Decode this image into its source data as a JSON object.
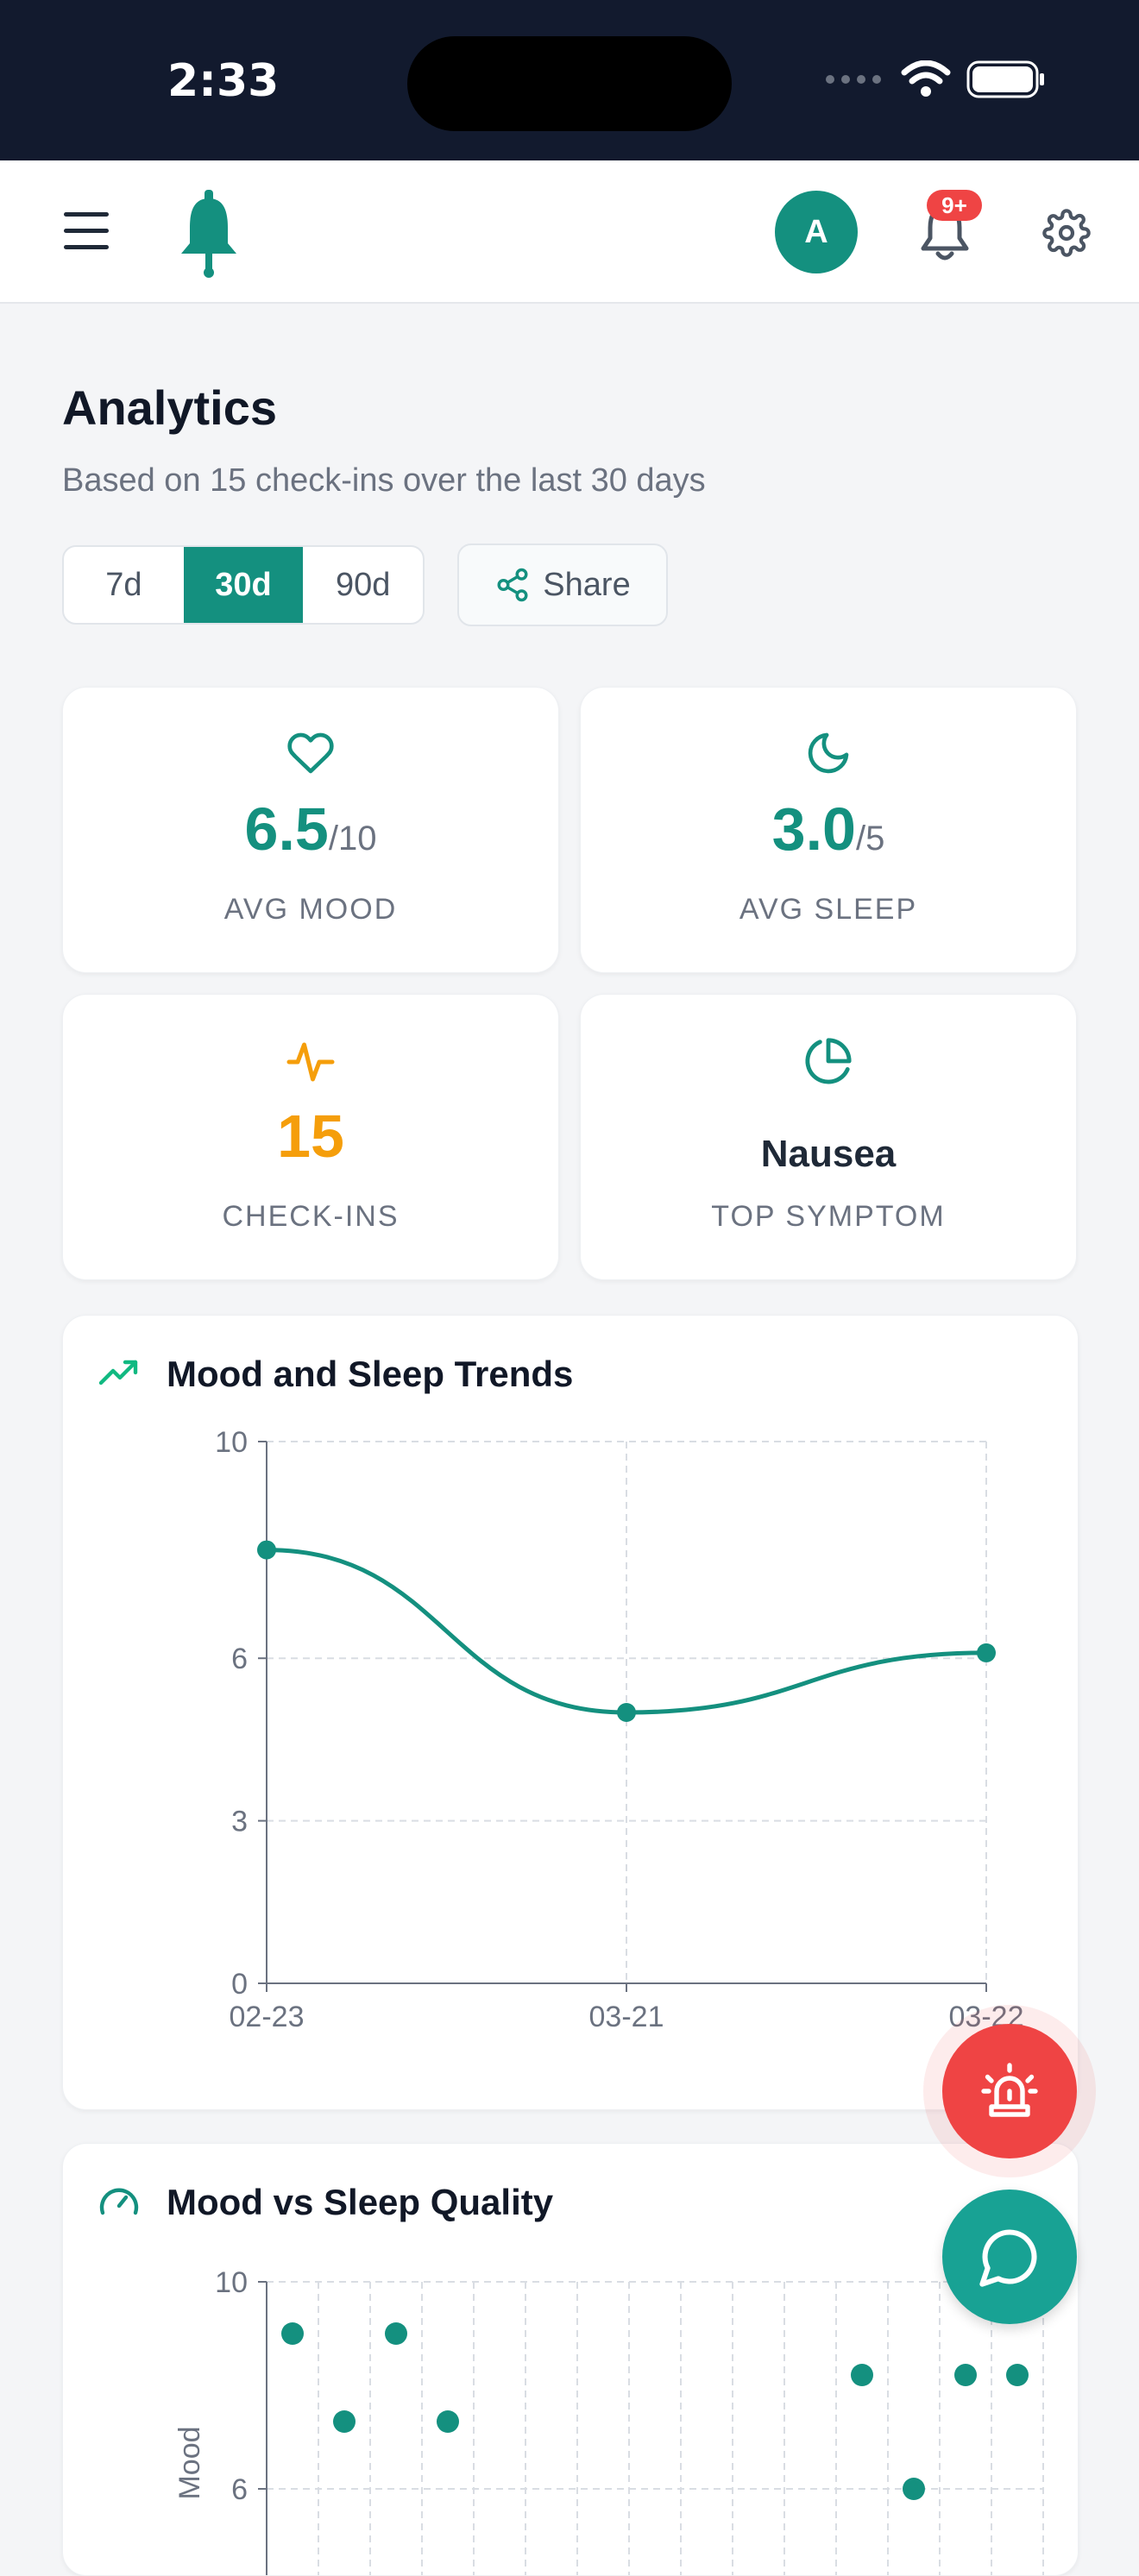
{
  "status_bar": {
    "time": "2:33"
  },
  "header": {
    "avatar_initial": "A",
    "notification_badge": "9+"
  },
  "page": {
    "title": "Analytics",
    "subtitle": "Based on 15 check-ins over the last 30 days"
  },
  "range": {
    "options": [
      "7d",
      "30d",
      "90d"
    ],
    "selected": "30d"
  },
  "share_label": "Share",
  "stats": {
    "mood": {
      "value": "6.5",
      "unit": "/10",
      "label": "AVG MOOD",
      "icon": "heart-icon"
    },
    "sleep": {
      "value": "3.0",
      "unit": "/5",
      "label": "AVG SLEEP",
      "icon": "moon-icon"
    },
    "checkins": {
      "value": "15",
      "label": "CHECK-INS",
      "icon": "activity-icon"
    },
    "symptom": {
      "value": "Nausea",
      "label": "TOP SYMPTOM",
      "icon": "pie-chart-icon"
    }
  },
  "colors": {
    "accent": "#14907f",
    "checkins": "#f59e0b",
    "alert": "#ef4444",
    "chat": "#18a294"
  },
  "chart_data": [
    {
      "type": "line",
      "title": "Mood and Sleep Trends",
      "categories": [
        "02-23",
        "03-21",
        "03-22"
      ],
      "series": [
        {
          "values": [
            8,
            5,
            6.1
          ]
        }
      ],
      "yticks": [
        0,
        3,
        6,
        10
      ],
      "ylim": [
        0,
        10
      ],
      "grid": true
    },
    {
      "type": "scatter",
      "title": "Mood vs Sleep Quality",
      "ylabel": "Mood",
      "yticks": [
        6,
        10
      ],
      "ylim": [
        6,
        10
      ],
      "points": [
        {
          "x": 1,
          "y": 9
        },
        {
          "x": 2,
          "y": 7.3
        },
        {
          "x": 3,
          "y": 9
        },
        {
          "x": 4,
          "y": 7.3
        },
        {
          "x": 12,
          "y": 8.2
        },
        {
          "x": 13,
          "y": 6
        },
        {
          "x": 14,
          "y": 8.2
        },
        {
          "x": 15,
          "y": 8.2
        }
      ],
      "xlim": [
        0.5,
        15.5
      ],
      "grid": true
    }
  ]
}
